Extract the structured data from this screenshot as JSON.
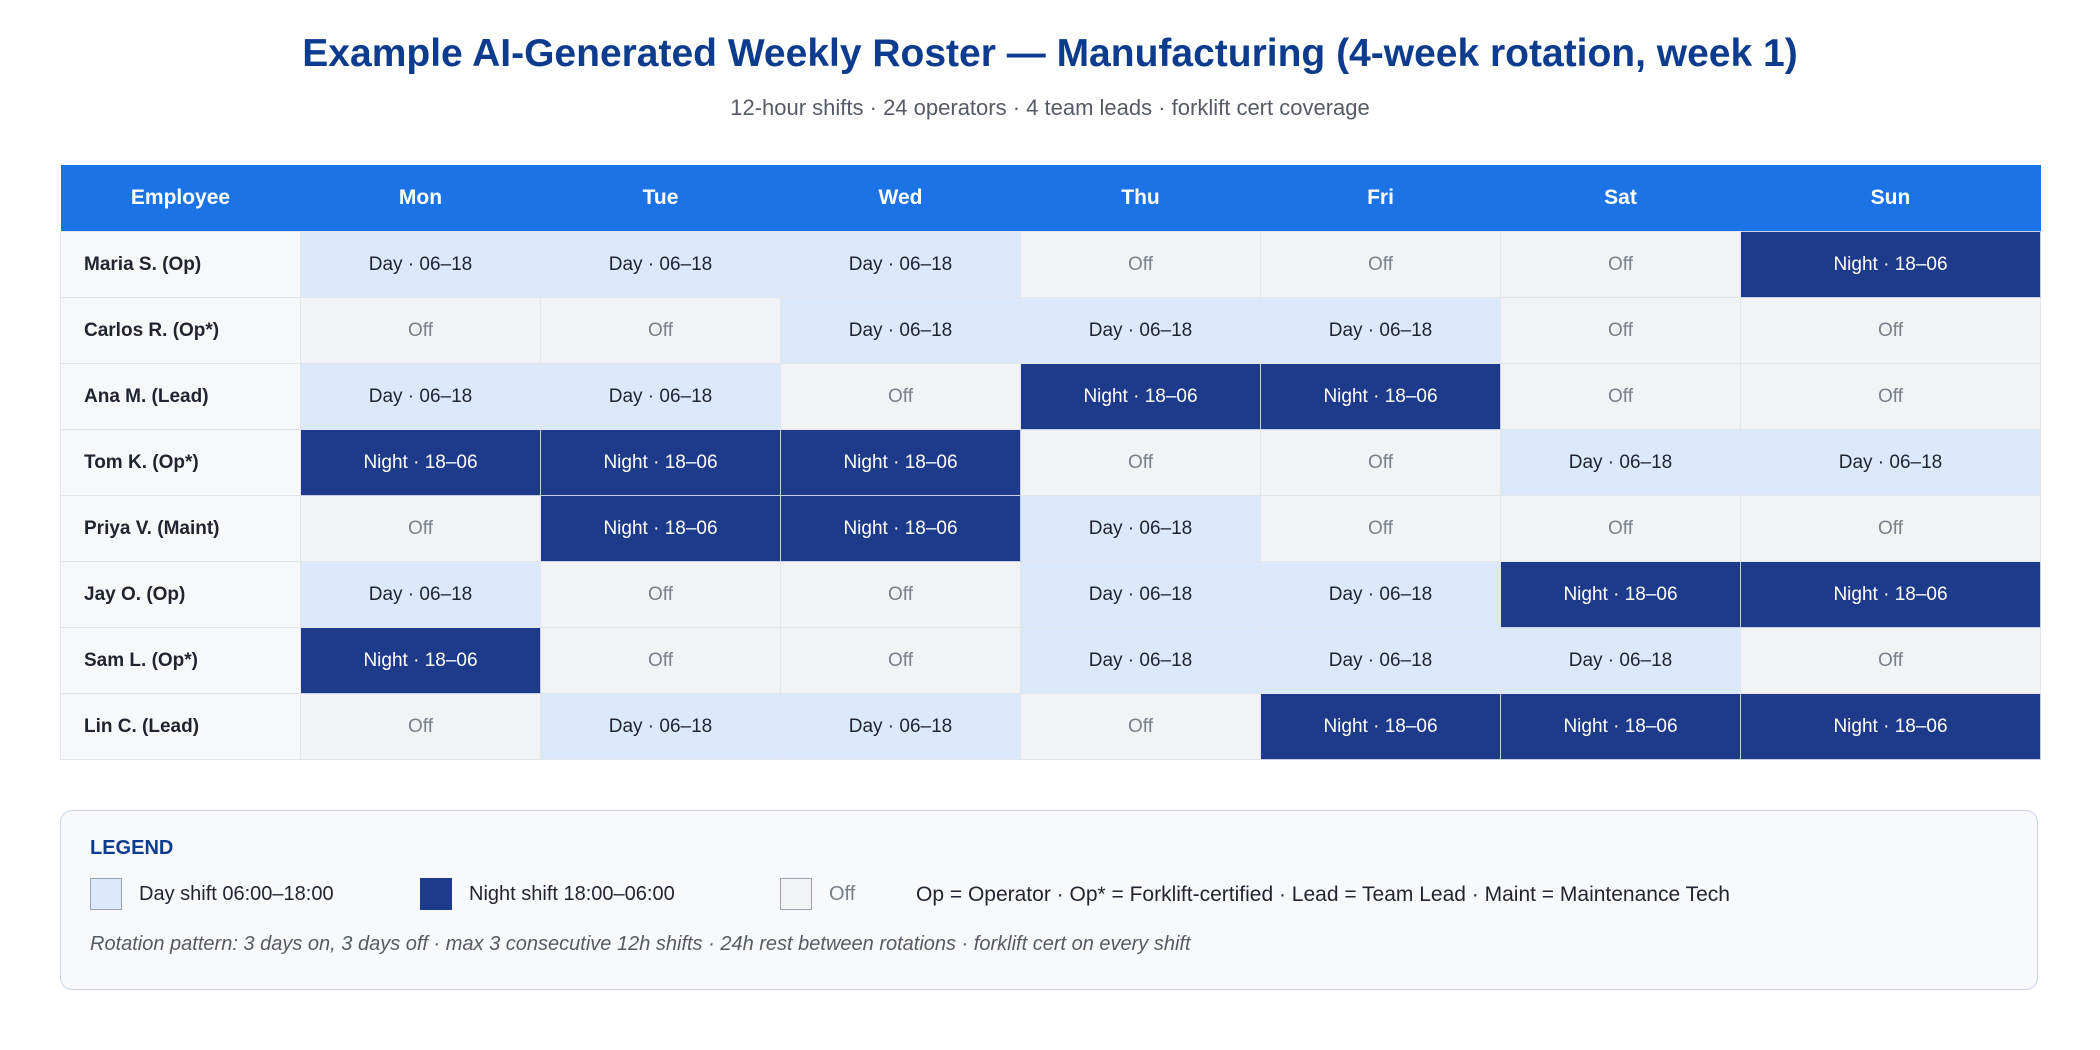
{
  "title": "Example AI-Generated Weekly Roster — Manufacturing (4-week rotation, week 1)",
  "subtitle": "12-hour shifts · 24 operators · 4 team leads · forklift cert coverage",
  "table": {
    "headers": [
      "Employee",
      "Mon",
      "Tue",
      "Wed",
      "Thu",
      "Fri",
      "Sat",
      "Sun"
    ],
    "rows": [
      {
        "employee": "Maria S. (Op)",
        "shifts": [
          "Day · 06–18",
          "Day · 06–18",
          "Day · 06–18",
          "Off",
          "Off",
          "Off",
          "Night · 18–06"
        ]
      },
      {
        "employee": "Carlos R. (Op*)",
        "shifts": [
          "Off",
          "Off",
          "Day · 06–18",
          "Day · 06–18",
          "Day · 06–18",
          "Off",
          "Off"
        ]
      },
      {
        "employee": "Ana M. (Lead)",
        "shifts": [
          "Day · 06–18",
          "Day · 06–18",
          "Off",
          "Night · 18–06",
          "Night · 18–06",
          "Off",
          "Off"
        ]
      },
      {
        "employee": "Tom K. (Op*)",
        "shifts": [
          "Night · 18–06",
          "Night · 18–06",
          "Night · 18–06",
          "Off",
          "Off",
          "Day · 06–18",
          "Day · 06–18"
        ]
      },
      {
        "employee": "Priya V. (Maint)",
        "shifts": [
          "Off",
          "Night · 18–06",
          "Night · 18–06",
          "Day · 06–18",
          "Off",
          "Off",
          "Off"
        ]
      },
      {
        "employee": "Jay O. (Op)",
        "shifts": [
          "Day · 06–18",
          "Off",
          "Off",
          "Day · 06–18",
          "Day · 06–18",
          "Night · 18–06",
          "Night · 18–06"
        ]
      },
      {
        "employee": "Sam L. (Op*)",
        "shifts": [
          "Night · 18–06",
          "Off",
          "Off",
          "Day · 06–18",
          "Day · 06–18",
          "Day · 06–18",
          "Off"
        ]
      },
      {
        "employee": "Lin C. (Lead)",
        "shifts": [
          "Off",
          "Day · 06–18",
          "Day · 06–18",
          "Off",
          "Night · 18–06",
          "Night · 18–06",
          "Night · 18–06"
        ]
      }
    ]
  },
  "legend": {
    "title": "LEGEND",
    "day_label": "Day shift  06:00–18:00",
    "night_label": "Night shift  18:00–06:00",
    "off_label": "Off",
    "abbreviations": "Op = Operator  ·  Op* = Forklift-certified  ·  Lead = Team Lead  ·  Maint = Maintenance Tech",
    "rotation_note": "Rotation pattern: 3 days on, 3 days off · max 3 consecutive 12h shifts · 24h rest between rotations · forklift cert on every shift"
  },
  "colors": {
    "header": "#1c73e6",
    "title": "#0d3b8e",
    "day": "#dce9fc",
    "night": "#1e3a8a",
    "off": "#f2f3f5"
  }
}
